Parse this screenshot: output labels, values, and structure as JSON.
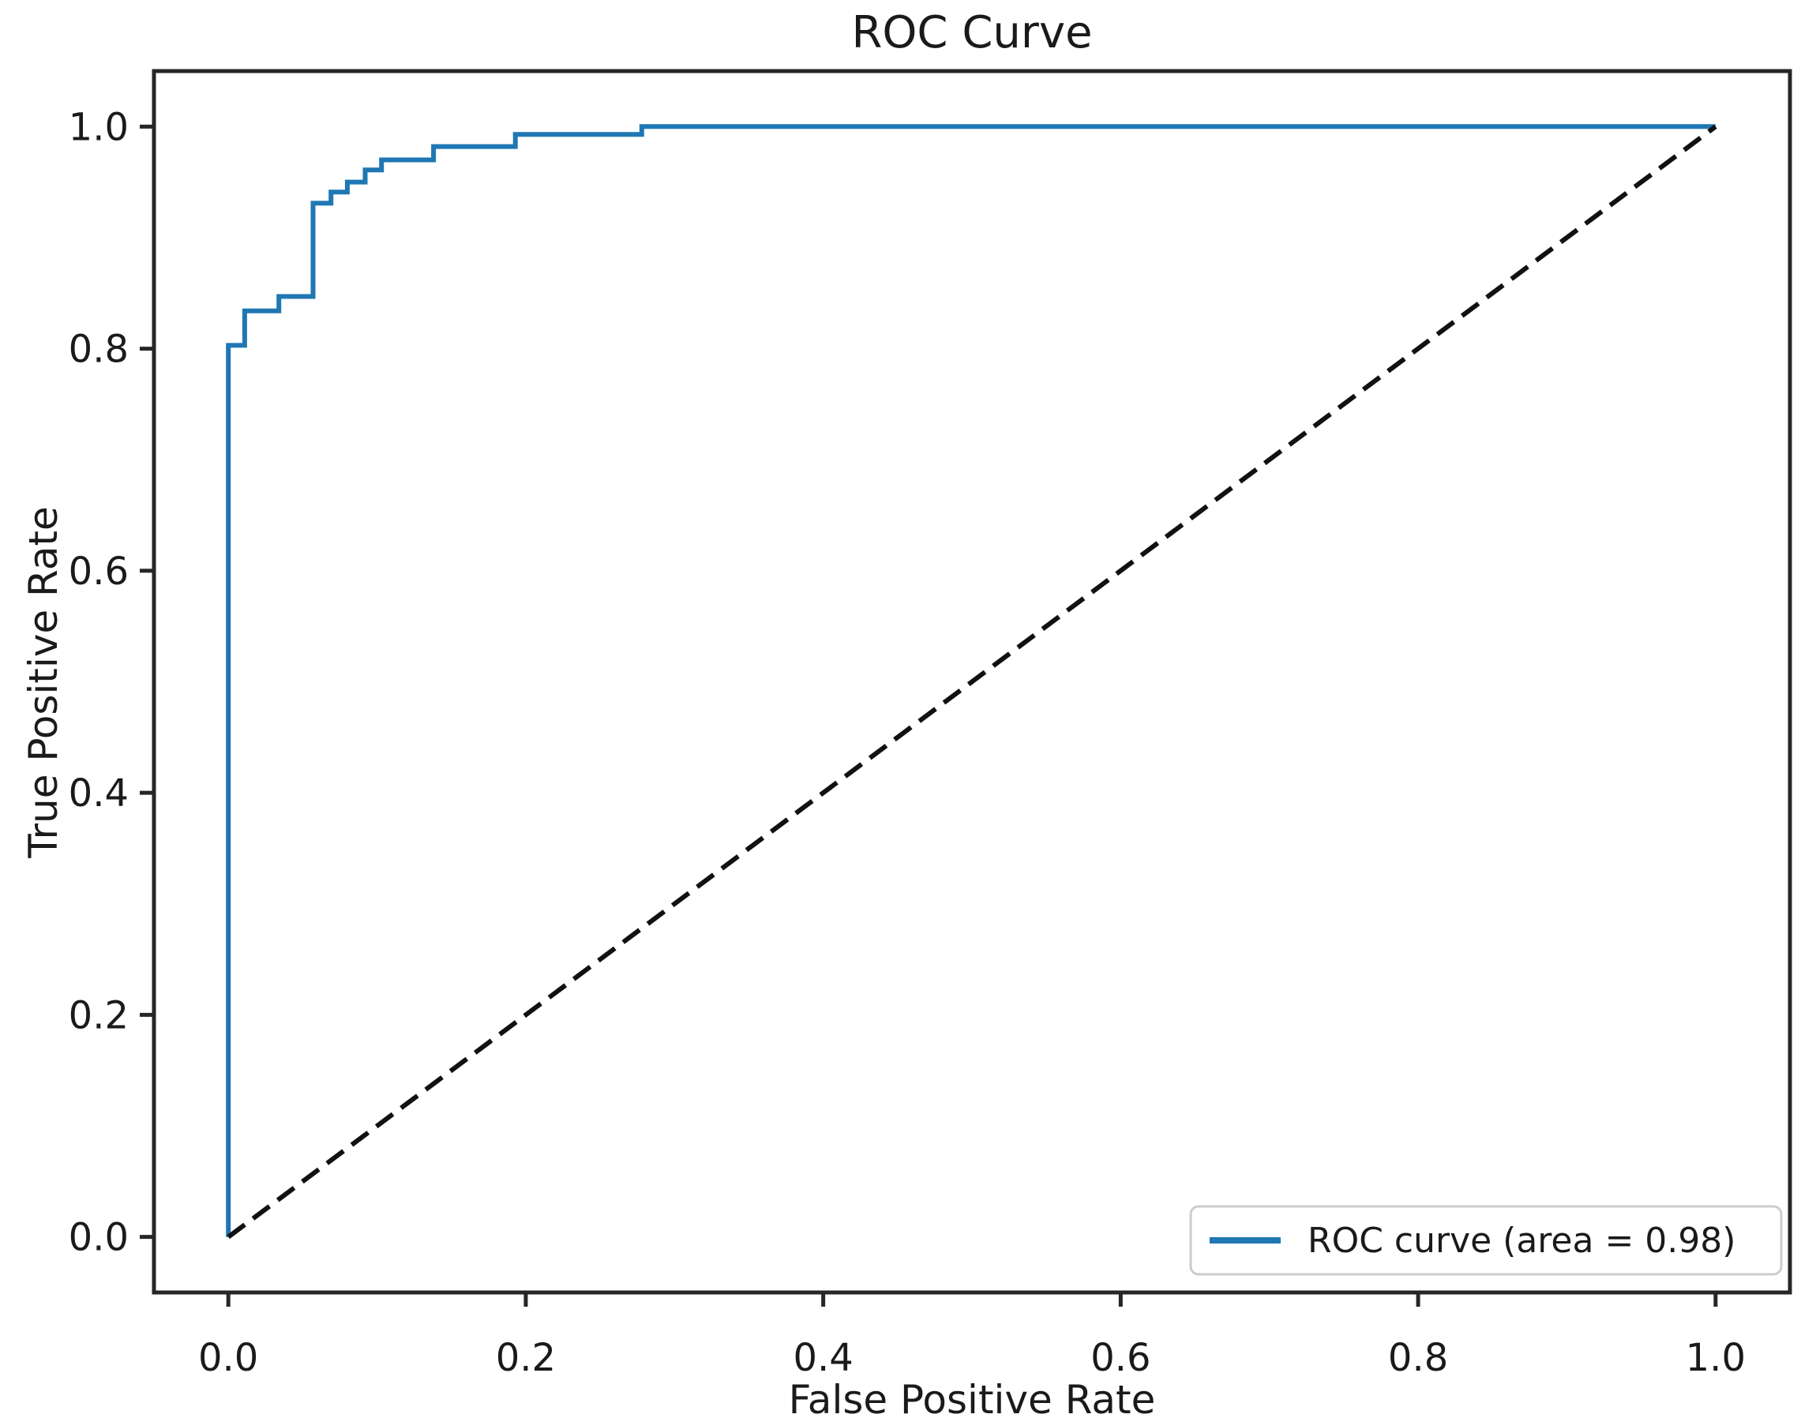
{
  "chart_data": {
    "type": "line",
    "title": "ROC Curve",
    "xlabel": "False Positive Rate",
    "ylabel": "True Positive Rate",
    "xlim": [
      -0.05,
      1.05
    ],
    "ylim": [
      -0.05,
      1.05
    ],
    "grid": false,
    "x_ticks": [
      0.0,
      0.2,
      0.4,
      0.6,
      0.8,
      1.0
    ],
    "x_tick_labels": [
      "0.0",
      "0.2",
      "0.4",
      "0.6",
      "0.8",
      "1.0"
    ],
    "y_ticks": [
      0.0,
      0.2,
      0.4,
      0.6,
      0.8,
      1.0
    ],
    "y_tick_labels": [
      "0.0",
      "0.2",
      "0.4",
      "0.6",
      "0.8",
      "1.0"
    ],
    "auc": 0.98,
    "legend": {
      "position": "lower right",
      "entries": [
        {
          "label": "ROC curve (area = 0.98)",
          "color": "#1f77b4",
          "style": "solid"
        }
      ]
    },
    "series": [
      {
        "name": "ROC curve (area = 0.98)",
        "color": "#1f77b4",
        "dashed": false,
        "points": [
          [
            0.0,
            0.0
          ],
          [
            0.0,
            0.803
          ],
          [
            0.011,
            0.803
          ],
          [
            0.011,
            0.834
          ],
          [
            0.034,
            0.834
          ],
          [
            0.034,
            0.847
          ],
          [
            0.057,
            0.847
          ],
          [
            0.057,
            0.931
          ],
          [
            0.069,
            0.931
          ],
          [
            0.069,
            0.941
          ],
          [
            0.08,
            0.941
          ],
          [
            0.08,
            0.95
          ],
          [
            0.092,
            0.95
          ],
          [
            0.092,
            0.961
          ],
          [
            0.103,
            0.961
          ],
          [
            0.103,
            0.97
          ],
          [
            0.138,
            0.97
          ],
          [
            0.138,
            0.982
          ],
          [
            0.193,
            0.982
          ],
          [
            0.193,
            0.993
          ],
          [
            0.278,
            0.993
          ],
          [
            0.278,
            1.0
          ],
          [
            1.0,
            1.0
          ]
        ]
      },
      {
        "name": "chance diagonal",
        "color": "#111111",
        "dashed": true,
        "points": [
          [
            0.0,
            0.0
          ],
          [
            1.0,
            1.0
          ]
        ]
      }
    ]
  }
}
